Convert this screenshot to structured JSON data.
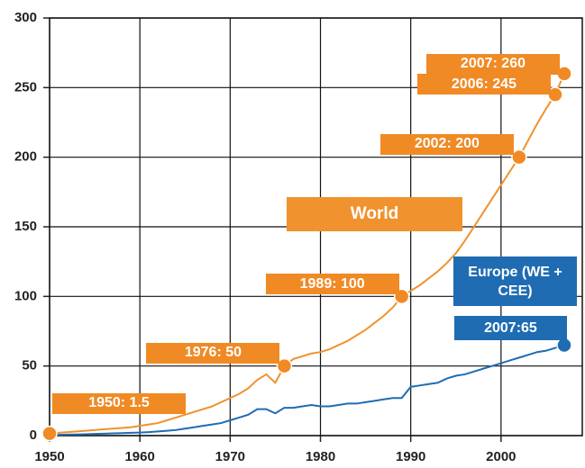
{
  "chart_data": {
    "type": "line",
    "x": [
      1950,
      1951,
      1952,
      1953,
      1954,
      1955,
      1956,
      1957,
      1958,
      1959,
      1960,
      1961,
      1962,
      1963,
      1964,
      1965,
      1966,
      1967,
      1968,
      1969,
      1970,
      1971,
      1972,
      1973,
      1974,
      1975,
      1976,
      1977,
      1978,
      1979,
      1980,
      1981,
      1982,
      1983,
      1984,
      1985,
      1986,
      1987,
      1988,
      1989,
      1990,
      1991,
      1992,
      1993,
      1994,
      1995,
      1996,
      1997,
      1998,
      1999,
      2000,
      2001,
      2002,
      2003,
      2004,
      2005,
      2006,
      2007
    ],
    "series": [
      {
        "name": "World",
        "color": "#f0922e",
        "values": [
          1.5,
          2,
          2.5,
          3,
          3.5,
          4,
          4.5,
          5,
          5.5,
          6,
          7,
          8,
          9,
          11,
          13,
          15,
          17,
          19,
          21,
          24,
          27,
          30,
          34,
          40,
          44,
          38,
          50,
          55,
          57,
          59,
          60,
          62,
          65,
          68,
          72,
          76,
          81,
          86,
          92,
          100,
          104,
          108,
          113,
          118,
          124,
          131,
          140,
          150,
          160,
          170,
          180,
          190,
          200,
          212,
          224,
          235,
          245,
          260
        ]
      },
      {
        "name": "Europe (WE + CEE)",
        "color": "#1f6cb2",
        "values": [
          0.5,
          0.6,
          0.7,
          0.8,
          1,
          1.2,
          1.4,
          1.6,
          1.8,
          2,
          2.2,
          2.5,
          3,
          3.5,
          4,
          5,
          6,
          7,
          8,
          9,
          11,
          13,
          15,
          19,
          19,
          16,
          20,
          20,
          21,
          22,
          21,
          21,
          22,
          23,
          23,
          24,
          25,
          26,
          27,
          27,
          35,
          36,
          37,
          38,
          41,
          43,
          44,
          46,
          48,
          50,
          52,
          54,
          56,
          58,
          60,
          61,
          63,
          65
        ]
      }
    ],
    "annotations": [
      {
        "text": "1950: 1.5",
        "x": 1950,
        "y": 1.5,
        "color": "#f08a24"
      },
      {
        "text": "1976: 50",
        "x": 1976,
        "y": 50,
        "color": "#f08a24"
      },
      {
        "text": "1989: 100",
        "x": 1989,
        "y": 100,
        "color": "#f08a24"
      },
      {
        "text": "2002: 200",
        "x": 2002,
        "y": 200,
        "color": "#f08a24"
      },
      {
        "text": "2006: 245",
        "x": 2006,
        "y": 245,
        "color": "#f08a24"
      },
      {
        "text": "2007: 260",
        "x": 2007,
        "y": 260,
        "color": "#f08a24"
      },
      {
        "text": "2007:65",
        "x": 2007,
        "y": 65,
        "color": "#1f6cb2"
      }
    ],
    "xlim": [
      1950,
      2009
    ],
    "xticks": [
      1950,
      1960,
      1970,
      1980,
      1990,
      2000
    ],
    "ylim": [
      0,
      300
    ],
    "yticks": [
      0,
      50,
      100,
      150,
      200,
      250,
      300
    ],
    "grid": true
  }
}
